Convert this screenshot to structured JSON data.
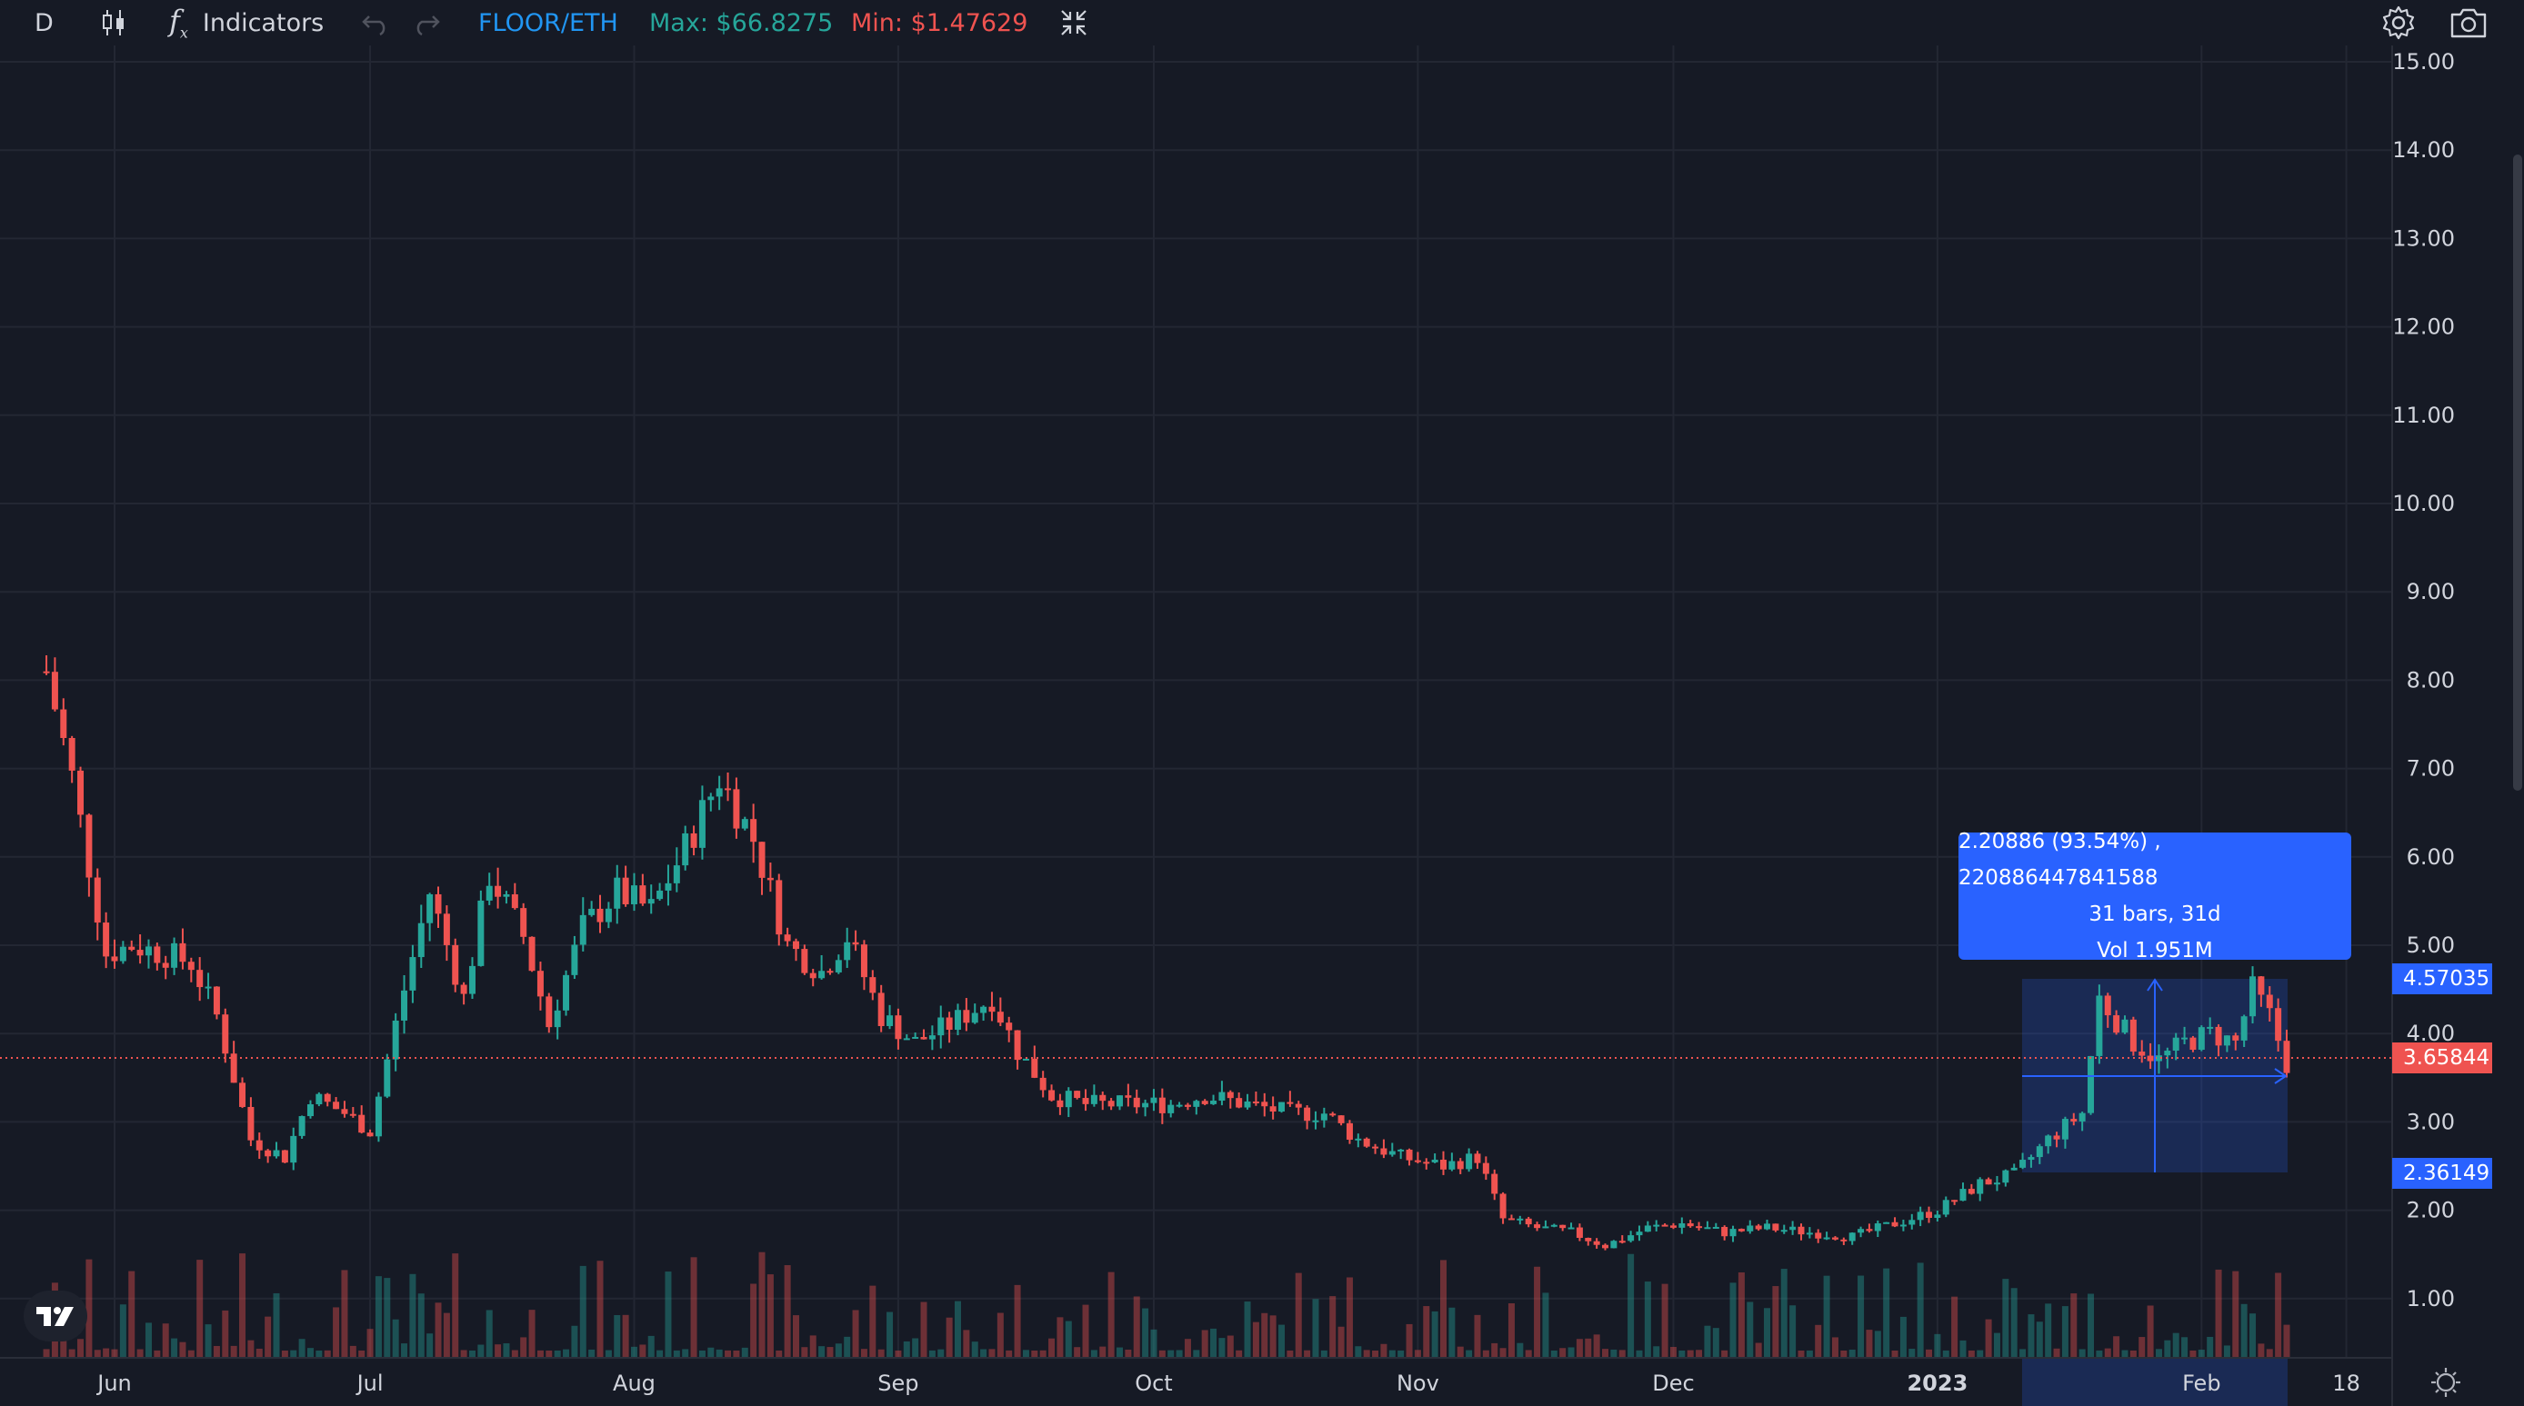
{
  "toolbar": {
    "interval": "D",
    "indicators_label": "Indicators",
    "symbol": "FLOOR/ETH",
    "max_label": "Max: $66.8275",
    "min_label": "Min: $1.47629",
    "icons": [
      "candles-icon",
      "fx-icon",
      "undo-icon",
      "redo-icon",
      "collapse-icon",
      "settings-icon",
      "camera-icon"
    ]
  },
  "colors": {
    "up": "#26a69a",
    "down": "#ef5350",
    "accent": "#2962ff",
    "max": "#26a69a",
    "min": "#ef5350",
    "symbol": "#2196f3"
  },
  "measure": {
    "line1": "2.20886 (93.54%) , 220886447841588",
    "line2": "31 bars, 31d",
    "line3": "Vol 1.951M",
    "high_label": "4.57035",
    "low_label": "2.36149",
    "high_value": 4.57035,
    "low_value": 2.36149
  },
  "last_price": {
    "label": "3.65844",
    "value": 3.65844
  },
  "chart_data": {
    "type": "candlestick",
    "title": "",
    "y_axis": {
      "ticks": [
        "15.00",
        "14.00",
        "13.00",
        "12.00",
        "11.00",
        "10.00",
        "9.00",
        "8.00",
        "7.00",
        "6.00",
        "5.00",
        "4.00",
        "3.00",
        "2.00",
        "1.00"
      ],
      "range": [
        0.5,
        15.1
      ]
    },
    "x_axis": {
      "ticks": [
        "Jun",
        "Jul",
        "Aug",
        "Sep",
        "Oct",
        "Nov",
        "Dec",
        "2023",
        "Feb",
        "18"
      ]
    },
    "grid": true,
    "price_points": [
      [
        "2022-05-24",
        8.1
      ],
      [
        "2022-05-27",
        6.9
      ],
      [
        "2022-05-31",
        4.9
      ],
      [
        "2022-06-03",
        5.0
      ],
      [
        "2022-06-07",
        4.9
      ],
      [
        "2022-06-10",
        4.8
      ],
      [
        "2022-06-13",
        4.2
      ],
      [
        "2022-06-17",
        2.8
      ],
      [
        "2022-06-21",
        2.6
      ],
      [
        "2022-06-24",
        3.3
      ],
      [
        "2022-06-28",
        3.1
      ],
      [
        "2022-07-01",
        2.9
      ],
      [
        "2022-07-05",
        4.5
      ],
      [
        "2022-07-08",
        5.6
      ],
      [
        "2022-07-12",
        4.4
      ],
      [
        "2022-07-15",
        5.8
      ],
      [
        "2022-07-19",
        5.1
      ],
      [
        "2022-07-22",
        4.1
      ],
      [
        "2022-07-26",
        5.2
      ],
      [
        "2022-07-30",
        5.6
      ],
      [
        "2022-08-03",
        5.4
      ],
      [
        "2022-08-07",
        6.1
      ],
      [
        "2022-08-11",
        6.9
      ],
      [
        "2022-08-15",
        6.2
      ],
      [
        "2022-08-19",
        5.0
      ],
      [
        "2022-08-23",
        4.7
      ],
      [
        "2022-08-26",
        5.1
      ],
      [
        "2022-08-30",
        4.2
      ],
      [
        "2022-09-03",
        3.9
      ],
      [
        "2022-09-07",
        4.1
      ],
      [
        "2022-09-12",
        4.4
      ],
      [
        "2022-09-15",
        3.8
      ],
      [
        "2022-09-19",
        3.3
      ],
      [
        "2022-09-23",
        3.2
      ],
      [
        "2022-09-28",
        3.2
      ],
      [
        "2022-10-03",
        3.2
      ],
      [
        "2022-10-07",
        3.3
      ],
      [
        "2022-10-12",
        3.2
      ],
      [
        "2022-10-17",
        3.1
      ],
      [
        "2022-10-21",
        3.1
      ],
      [
        "2022-10-25",
        2.8
      ],
      [
        "2022-10-30",
        2.6
      ],
      [
        "2022-11-04",
        2.5
      ],
      [
        "2022-11-08",
        2.6
      ],
      [
        "2022-11-11",
        1.9
      ],
      [
        "2022-11-15",
        1.8
      ],
      [
        "2022-11-19",
        1.75
      ],
      [
        "2022-11-23",
        1.6
      ],
      [
        "2022-11-28",
        1.8
      ],
      [
        "2022-12-02",
        1.85
      ],
      [
        "2022-12-07",
        1.75
      ],
      [
        "2022-12-12",
        1.8
      ],
      [
        "2022-12-17",
        1.75
      ],
      [
        "2022-12-22",
        1.7
      ],
      [
        "2022-12-27",
        1.85
      ],
      [
        "2023-01-01",
        2.0
      ],
      [
        "2023-01-06",
        2.3
      ],
      [
        "2023-01-10",
        2.4
      ],
      [
        "2023-01-14",
        2.8
      ],
      [
        "2023-01-18",
        3.1
      ],
      [
        "2023-01-20",
        4.4
      ],
      [
        "2023-01-24",
        3.9
      ],
      [
        "2023-01-27",
        3.7
      ],
      [
        "2023-01-30",
        3.9
      ],
      [
        "2023-02-02",
        4.0
      ],
      [
        "2023-02-05",
        3.9
      ],
      [
        "2023-02-07",
        4.5
      ],
      [
        "2023-02-09",
        4.2
      ],
      [
        "2023-02-11",
        3.66
      ]
    ]
  }
}
